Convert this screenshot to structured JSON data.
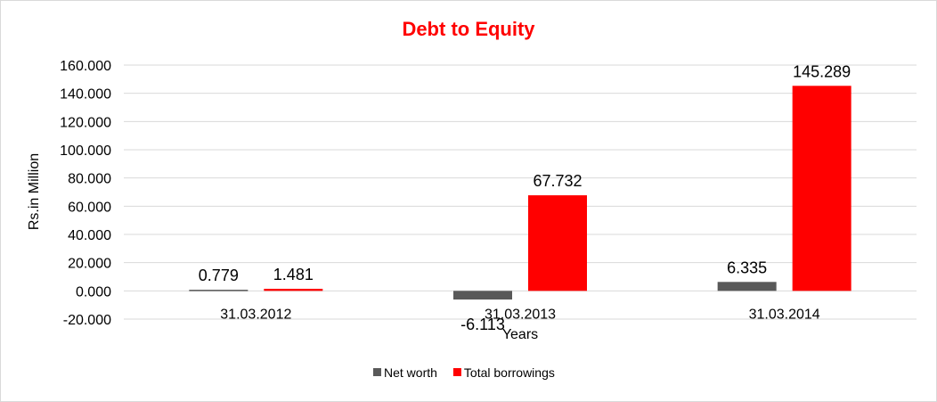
{
  "chart_data": {
    "type": "bar",
    "title": "Debt to Equity",
    "xlabel": "Years",
    "ylabel": "Rs.in Million",
    "categories": [
      "31.03.2012",
      "31.03.2013",
      "31.03.2014"
    ],
    "series": [
      {
        "name": "Net worth",
        "color": "#595959",
        "values": [
          0.779,
          -6.113,
          6.335
        ],
        "labels": [
          "0.779",
          "-6.113",
          "6.335"
        ]
      },
      {
        "name": "Total borrowings",
        "color": "#ff0000",
        "values": [
          1.481,
          67.732,
          145.289
        ],
        "labels": [
          "1.481",
          "67.732",
          "145.289"
        ]
      }
    ],
    "ylim": [
      -20,
      160
    ],
    "yticks": [
      -20,
      0,
      20,
      40,
      60,
      80,
      100,
      120,
      140,
      160
    ],
    "ytick_labels": [
      "-20.000",
      "0.000",
      "20.000",
      "40.000",
      "60.000",
      "80.000",
      "100.000",
      "120.000",
      "140.000",
      "160.000"
    ],
    "grid": true,
    "legend_position": "bottom",
    "title_color": "#ff0000"
  }
}
